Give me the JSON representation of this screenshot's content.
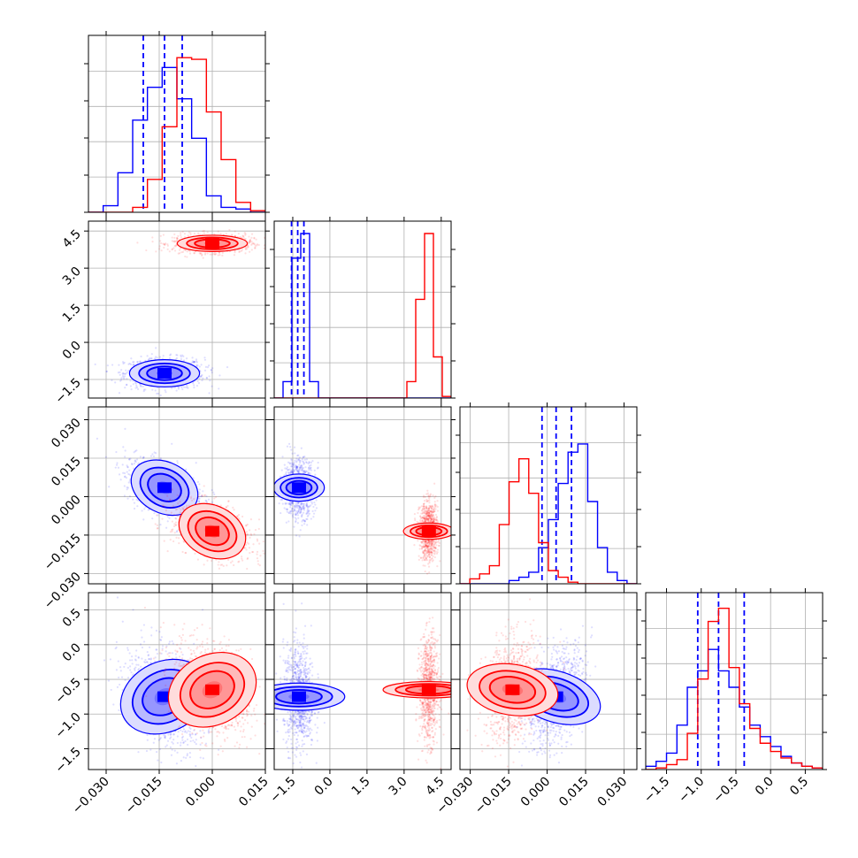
{
  "chart_data": {
    "type": "corner",
    "grid": true,
    "parameters": [
      {
        "range": [
          -0.035,
          0.015
        ],
        "ticks": [
          "−0.030",
          "−0.015",
          "0.000",
          "0.015"
        ],
        "tick_values": [
          -0.03,
          -0.015,
          0.0,
          0.015
        ]
      },
      {
        "range": [
          -2.25,
          4.9
        ],
        "ticks": [
          "−1.5",
          "0.0",
          "1.5",
          "3.0",
          "4.5"
        ],
        "tick_values": [
          -1.5,
          0.0,
          1.5,
          3.0,
          4.5
        ]
      },
      {
        "range": [
          -0.034,
          0.035
        ],
        "ticks": [
          "−0.030",
          "−0.015",
          "0.000",
          "0.015",
          "0.030"
        ],
        "tick_values": [
          -0.03,
          -0.015,
          0.0,
          0.015,
          0.03
        ]
      },
      {
        "range": [
          -1.8,
          0.75
        ],
        "ticks": [
          "−1.5",
          "−1.0",
          "−0.5",
          "0.0",
          "0.5"
        ],
        "tick_values": [
          -1.5,
          -1.0,
          -0.5,
          0.0,
          0.5
        ]
      }
    ],
    "series": [
      {
        "color": "#0000ff",
        "means": [
          -0.0135,
          -1.25,
          0.0035,
          -0.75
        ],
        "sds": [
          0.0045,
          0.25,
          0.0045,
          0.3
        ],
        "quantiles": [
          [
            -0.0195,
            -0.0135,
            -0.0085
          ],
          [
            -1.55,
            -1.3,
            -1.05
          ],
          [
            -0.002,
            0.0035,
            0.0095
          ],
          [
            -1.05,
            -0.75,
            -0.38
          ]
        ],
        "hist": [
          [
            0,
            0.04,
            0.24,
            0.56,
            0.76,
            0.88,
            0.69,
            0.45,
            0.1,
            0.03,
            0.02,
            0.0
          ],
          [
            0,
            0.1,
            0.85,
            1.0,
            0.1,
            0.0,
            0,
            0,
            0,
            0,
            0,
            0,
            0,
            0,
            0,
            0,
            0,
            0,
            0,
            0
          ],
          [
            0,
            0.0,
            0.0,
            0.0,
            0.0,
            0.02,
            0.04,
            0.07,
            0.22,
            0.39,
            0.61,
            0.8,
            0.85,
            0.5,
            0.22,
            0.07,
            0.02,
            0.0
          ],
          [
            0.02,
            0.05,
            0.1,
            0.27,
            0.5,
            0.6,
            0.73,
            0.6,
            0.5,
            0.38,
            0.27,
            0.2,
            0.14,
            0.08,
            0.04,
            0.02,
            0.01
          ]
        ]
      },
      {
        "color": "#ff0000",
        "means": [
          0.0,
          4.0,
          -0.0135,
          -0.65
        ],
        "sds": [
          0.0045,
          0.15,
          0.0045,
          0.3
        ],
        "quantiles": [],
        "hist": [
          [
            0,
            0.0,
            0.0,
            0.03,
            0.2,
            0.52,
            0.94,
            0.93,
            0.61,
            0.32,
            0.06,
            0.01
          ],
          [
            0,
            0,
            0,
            0,
            0,
            0,
            0,
            0,
            0,
            0,
            0,
            0,
            0,
            0,
            0,
            0.1,
            0.6,
            1.0,
            0.25,
            0.01
          ],
          [
            0,
            0.03,
            0.06,
            0.11,
            0.36,
            0.62,
            0.76,
            0.55,
            0.25,
            0.08,
            0.04,
            0.01,
            0.0,
            0,
            0,
            0,
            0,
            0
          ],
          [
            0,
            0.01,
            0.03,
            0.06,
            0.22,
            0.55,
            0.9,
            0.98,
            0.62,
            0.4,
            0.25,
            0.16,
            0.11,
            0.07,
            0.04,
            0.02,
            0.01
          ]
        ]
      }
    ]
  }
}
